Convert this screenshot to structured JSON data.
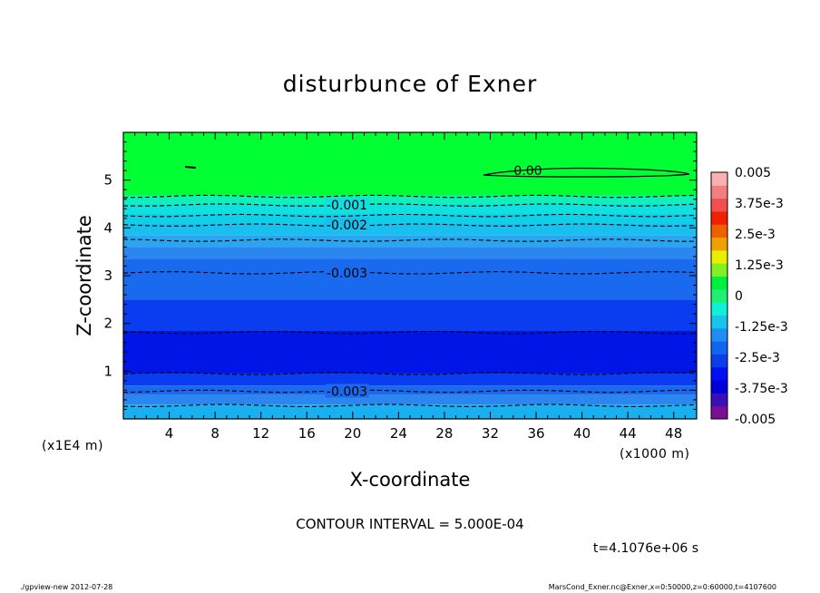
{
  "chart_data": {
    "type": "heatmap",
    "title": "disturbunce of Exner",
    "xlabel": "X-coordinate",
    "ylabel": "Z-coordinate",
    "x_unit_note": "(x1000 m)",
    "y_unit_note": "(x1E4 m)",
    "xlim": [
      0,
      50
    ],
    "ylim": [
      0,
      6
    ],
    "x_ticks": [
      "4",
      "8",
      "12",
      "16",
      "20",
      "24",
      "28",
      "32",
      "36",
      "40",
      "44",
      "48"
    ],
    "y_ticks": [
      "1",
      "2",
      "3",
      "4",
      "5"
    ],
    "contour_interval_text": "CONTOUR INTERVAL = 5.000E-04",
    "time_text": "t=4.1076e+06 s",
    "colorbar": {
      "labels": [
        "0.005",
        "3.75e-3",
        "2.5e-3",
        "1.25e-3",
        "0",
        "-1.25e-3",
        "-2.5e-3",
        "-3.75e-3",
        "-0.005"
      ],
      "min": -0.005,
      "max": 0.005,
      "colors": [
        "#7a0f95",
        "#3b0fb8",
        "#0000dc",
        "#0010f4",
        "#0a3ee8",
        "#1166f0",
        "#1f8ef4",
        "#18c4ec",
        "#10f0d8",
        "#20f070",
        "#00f040",
        "#80f020",
        "#e8f000",
        "#f0a000",
        "#f06000",
        "#f02000",
        "#f05050",
        "#f08080",
        "#f8b0b0"
      ]
    },
    "bands": [
      {
        "z_low": 4.68,
        "z_high": 6.0,
        "color": "#00ff33"
      },
      {
        "z_low": 4.5,
        "z_high": 4.68,
        "color": "#10f0b8"
      },
      {
        "z_low": 4.3,
        "z_high": 4.5,
        "color": "#10e0e0"
      },
      {
        "z_low": 4.1,
        "z_high": 4.3,
        "color": "#10d0e8"
      },
      {
        "z_low": 3.85,
        "z_high": 4.1,
        "color": "#18c0f0"
      },
      {
        "z_low": 3.6,
        "z_high": 3.85,
        "color": "#2aa6f0"
      },
      {
        "z_low": 3.35,
        "z_high": 3.6,
        "color": "#2c86f0"
      },
      {
        "z_low": 2.5,
        "z_high": 3.35,
        "color": "#1a6af0"
      },
      {
        "z_low": 1.85,
        "z_high": 2.5,
        "color": "#0a3cf0"
      },
      {
        "z_low": 0.95,
        "z_high": 1.85,
        "color": "#0016e6"
      },
      {
        "z_low": 0.7,
        "z_high": 0.95,
        "color": "#0a3cf0"
      },
      {
        "z_low": 0.5,
        "z_high": 0.7,
        "color": "#1a6af0"
      },
      {
        "z_low": 0.3,
        "z_high": 0.5,
        "color": "#2c86f0"
      },
      {
        "z_low": 0.0,
        "z_high": 0.3,
        "color": "#18b0f0"
      }
    ],
    "contours": [
      {
        "z": 4.66,
        "style": "dashed"
      },
      {
        "z": 4.48,
        "style": "dashed",
        "label": "-0.001",
        "label_x": 19.5
      },
      {
        "z": 4.26,
        "style": "dashed"
      },
      {
        "z": 4.06,
        "style": "dashed",
        "label": "-0.002",
        "label_x": 19.5
      },
      {
        "z": 3.74,
        "style": "dashed"
      },
      {
        "z": 3.06,
        "style": "dashed",
        "label": "-0.003",
        "label_x": 19.5
      },
      {
        "z": 1.81,
        "style": "dashed"
      },
      {
        "z": 0.95,
        "style": "dashed"
      },
      {
        "z": 0.58,
        "style": "dashed",
        "label": "-0.003",
        "label_x": 19.5
      },
      {
        "z": 0.28,
        "style": "dashed"
      }
    ],
    "zero_contour_label": "0.00"
  },
  "footer": {
    "left": "./gpview-new   2012-07-28",
    "right": "MarsCond_Exner.nc@Exner,x=0:50000,z=0:60000,t=4107600"
  }
}
